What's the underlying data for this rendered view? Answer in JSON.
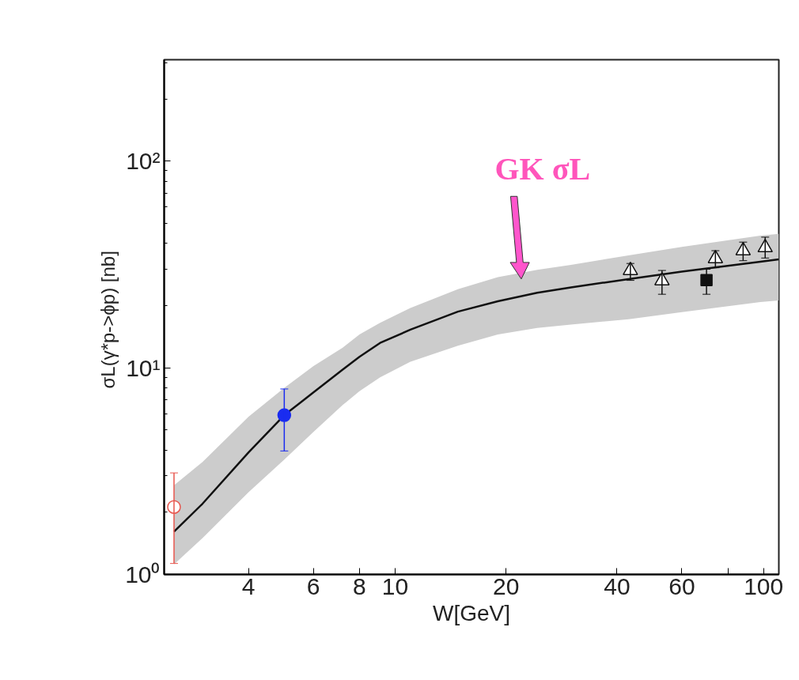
{
  "chart_data": {
    "type": "scatter",
    "xlabel": "W[GeV]",
    "ylabel": "σL(γ*p->ϕp)  [nb]",
    "log": "xy",
    "grid": false,
    "xlim": [
      2.36,
      110
    ],
    "ylim": [
      1,
      310
    ],
    "xticks": [
      4,
      6,
      8,
      10,
      20,
      40,
      60,
      {
        "value": 80,
        "label": null
      },
      100
    ],
    "yticks": [
      {
        "value": 1,
        "label": "10⁰"
      },
      {
        "value": 10,
        "label": "10¹"
      },
      {
        "value": 100,
        "label": "10²"
      }
    ],
    "annotations": [
      "GK σL"
    ],
    "series": [
      {
        "type": "line",
        "color": "#111111",
        "marker": "none",
        "line_style": "solid",
        "x": [
          2.51,
          3,
          4,
          5,
          6,
          7.2,
          8,
          9.1,
          11,
          14.8,
          19,
          24.3,
          30,
          43,
          60,
          98,
          110
        ],
        "values": [
          1.61,
          2.2,
          3.9,
          5.9,
          7.6,
          9.8,
          11.3,
          13.2,
          15.3,
          18.7,
          21.0,
          23.1,
          24.5,
          26.9,
          29.2,
          32.6,
          33.5
        ],
        "lower": [
          1.12,
          1.5,
          2.5,
          3.6,
          4.9,
          6.6,
          7.7,
          9.0,
          10.7,
          12.8,
          14.5,
          15.6,
          16.2,
          17.2,
          18.6,
          20.8,
          21.2
        ],
        "upper": [
          2.7,
          3.5,
          5.8,
          8.0,
          10.2,
          12.5,
          14.5,
          16.5,
          19.5,
          24.0,
          27.5,
          29.8,
          31.5,
          35.0,
          38.5,
          43.6,
          44.5
        ]
      },
      {
        "color": "#e8564e",
        "marker": "circle_open",
        "x": [
          2.51
        ],
        "values": [
          2.12
        ],
        "errors": [
          [
            1.13,
            3.1
          ]
        ]
      },
      {
        "color": "#1a2cf0",
        "marker": "circle",
        "x": [
          5.0
        ],
        "values": [
          5.9
        ],
        "errors": [
          [
            3.96,
            7.9
          ]
        ]
      },
      {
        "color": "#111111",
        "marker": "triangle_open",
        "x": [
          43.5,
          53,
          74,
          88,
          101
        ],
        "values": [
          29.6,
          26.4,
          33.8,
          36.9,
          38.2
        ],
        "errors": [
          [
            26.5,
            32
          ],
          [
            22.7,
            29.6
          ],
          [
            30.5,
            36.9
          ],
          [
            33,
            40.6
          ],
          [
            34,
            42.9
          ]
        ]
      },
      {
        "color": "#111111",
        "marker": "square",
        "x": [
          70
        ],
        "values": [
          26.6
        ],
        "errors": [
          [
            22.7,
            30
          ]
        ]
      }
    ]
  }
}
